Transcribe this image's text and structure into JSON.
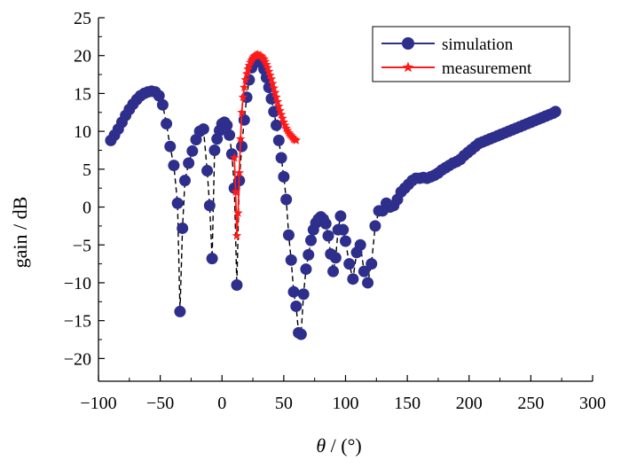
{
  "chart_data": {
    "type": "scatter",
    "xlabel_symbol": "θ",
    "xlabel_unit": " / (°)",
    "ylabel": "gain / dB",
    "xlim": [
      -100,
      300
    ],
    "ylim": [
      -23,
      25
    ],
    "xticks": [
      -100,
      -50,
      0,
      50,
      100,
      150,
      200,
      250,
      300
    ],
    "xtick_labels": [
      "−100",
      "−50",
      "0",
      "50",
      "100",
      "150",
      "200",
      "250",
      "300"
    ],
    "yticks": [
      -20,
      -15,
      -10,
      -5,
      0,
      5,
      10,
      15,
      20,
      25
    ],
    "ytick_labels": [
      "−20",
      "−15",
      "−10",
      "−5",
      "0",
      "5",
      "10",
      "15",
      "20",
      "25"
    ],
    "grid": false,
    "legend_position": "top-right",
    "series": [
      {
        "name": "simulation",
        "color": "#2e2e8c",
        "marker": "circle",
        "line_color": "#000000",
        "line_style": "dashed",
        "x": [
          -90,
          -87,
          -84,
          -81,
          -78,
          -75,
          -72,
          -69,
          -66,
          -63,
          -60,
          -57,
          -54,
          -51,
          -48,
          -45,
          -42,
          -39,
          -36,
          -34,
          -32,
          -30,
          -27,
          -24,
          -21,
          -18,
          -15,
          -12,
          -10,
          -8,
          -6,
          -4,
          -2,
          0,
          2,
          4,
          6,
          8,
          10,
          12,
          14,
          16,
          18,
          20,
          22,
          24,
          26,
          28,
          30,
          32,
          34,
          36,
          38,
          40,
          42,
          44,
          46,
          48,
          50,
          52,
          54,
          56,
          58,
          60,
          62,
          64,
          66,
          68,
          70,
          72,
          74,
          76,
          78,
          80,
          82,
          84,
          86,
          88,
          90,
          92,
          94,
          96,
          98,
          100,
          103,
          106,
          109,
          112,
          115,
          118,
          121,
          124,
          127,
          130,
          133,
          136,
          139,
          142,
          145,
          148,
          151,
          154,
          157,
          160,
          163,
          166,
          169,
          172,
          175,
          178,
          181,
          184,
          187,
          190,
          193,
          196,
          199,
          202,
          205,
          208,
          211,
          214,
          217,
          220,
          223,
          226,
          229,
          232,
          235,
          238,
          241,
          244,
          247,
          250,
          253,
          256,
          259,
          262,
          265,
          268,
          270
        ],
        "y": [
          8.8,
          9.5,
          10.3,
          11.2,
          12.1,
          12.9,
          13.6,
          14.2,
          14.7,
          15.0,
          15.2,
          15.3,
          15.2,
          14.7,
          13.5,
          11.0,
          8.0,
          5.5,
          0.5,
          -13.8,
          -2.8,
          3.5,
          5.8,
          7.4,
          8.9,
          10.0,
          10.3,
          4.8,
          0.2,
          -6.8,
          7.5,
          9.0,
          10.1,
          11.0,
          11.2,
          10.8,
          9.5,
          7.0,
          2.5,
          -10.3,
          3.5,
          8.0,
          11.5,
          14.5,
          16.8,
          18.4,
          19.3,
          19.7,
          19.6,
          19.0,
          18.2,
          17.1,
          15.8,
          14.3,
          12.6,
          10.8,
          8.8,
          6.5,
          4.0,
          1.0,
          -3.7,
          -7.0,
          -11.2,
          -13.1,
          -16.6,
          -16.8,
          -11.5,
          -8.2,
          -6.3,
          -4.4,
          -3.0,
          -2.1,
          -1.6,
          -1.3,
          -1.6,
          -2.2,
          -3.8,
          -6.2,
          -8.5,
          -6.7,
          -3.0,
          -1.2,
          -3.0,
          -4.5,
          -7.5,
          -9.5,
          -6.0,
          -5.0,
          -8.5,
          -10.0,
          -7.5,
          -2.5,
          -0.5,
          -0.5,
          0.5,
          0.0,
          0.2,
          1.0,
          2.0,
          2.5,
          3.0,
          3.5,
          3.8,
          3.8,
          3.9,
          3.8,
          4.0,
          4.2,
          4.5,
          4.9,
          5.2,
          5.5,
          5.8,
          6.0,
          6.3,
          6.8,
          7.2,
          7.6,
          8.0,
          8.4,
          8.6,
          8.8,
          9.0,
          9.2,
          9.4,
          9.6,
          9.8,
          10.0,
          10.2,
          10.4,
          10.6,
          10.8,
          11.0,
          11.2,
          11.4,
          11.6,
          11.8,
          12.0,
          12.2,
          12.4,
          12.6
        ]
      },
      {
        "name": "measurement",
        "color": "#ff1a1a",
        "marker": "star",
        "line_color": "#ff1a1a",
        "line_style": "solid",
        "x": [
          10,
          11,
          12,
          13,
          14,
          15,
          16,
          17,
          18,
          19,
          20,
          21,
          22,
          23,
          24,
          25,
          26,
          27,
          28,
          29,
          30,
          31,
          32,
          33,
          34,
          35,
          36,
          37,
          38,
          39,
          40,
          41,
          42,
          43,
          44,
          45,
          46,
          47,
          48,
          49,
          50,
          51,
          52,
          53,
          54,
          55,
          56,
          57,
          58,
          59,
          60
        ],
        "y": [
          6.5,
          2.0,
          -3.8,
          -0.8,
          4.5,
          9.0,
          12.5,
          14.5,
          15.8,
          16.8,
          17.6,
          18.2,
          18.7,
          19.1,
          19.4,
          19.7,
          19.9,
          20.0,
          20.1,
          20.1,
          20.0,
          20.0,
          19.9,
          19.7,
          19.5,
          19.2,
          18.8,
          18.4,
          17.9,
          17.4,
          16.9,
          16.3,
          15.7,
          15.1,
          14.5,
          13.9,
          13.3,
          12.7,
          12.2,
          11.7,
          11.2,
          10.8,
          10.4,
          10.1,
          9.8,
          9.6,
          9.4,
          9.2,
          9.0,
          8.9,
          8.8
        ]
      }
    ]
  }
}
